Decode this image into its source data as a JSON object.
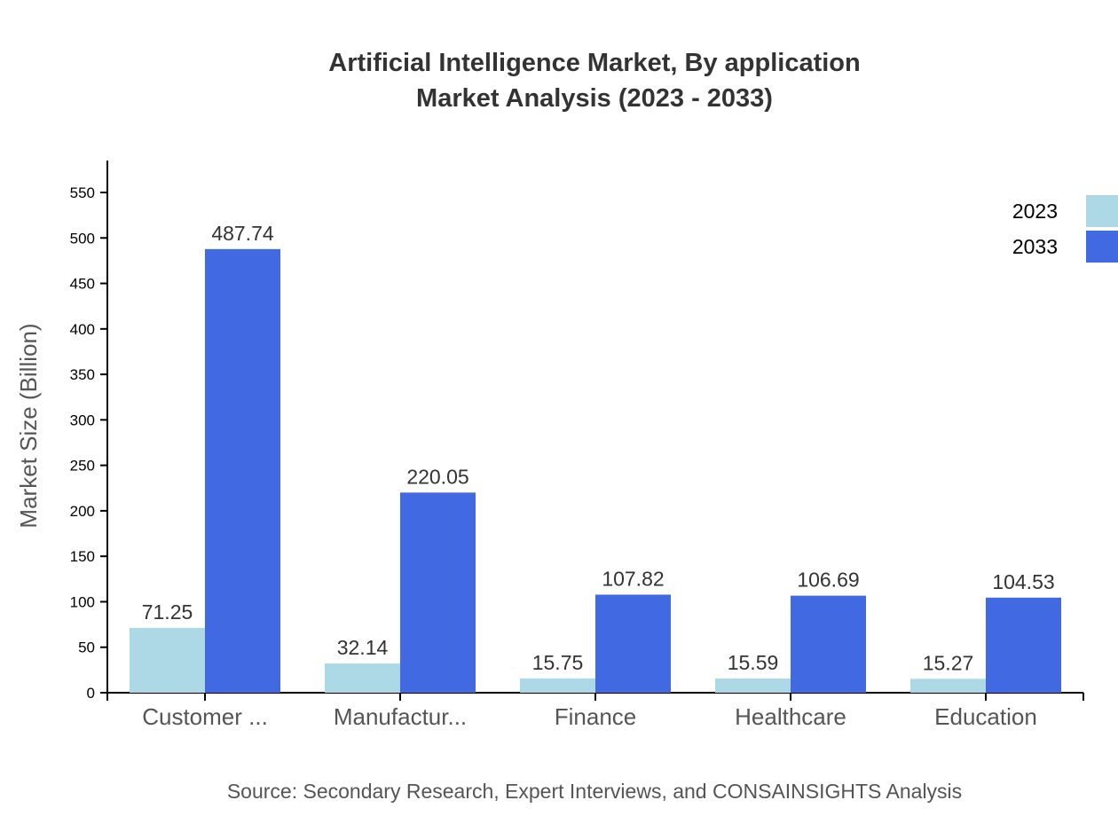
{
  "chart_data": {
    "type": "bar",
    "title": "Artificial Intelligence Market, By application",
    "subtitle": "Market Analysis (2023 - 2033)",
    "ylabel": "Market Size (Billion)",
    "xlabel": "",
    "ylim": [
      0,
      585
    ],
    "yticks": [
      0,
      50,
      100,
      150,
      200,
      250,
      300,
      350,
      400,
      450,
      500,
      550
    ],
    "categories": [
      "Customer ...",
      "Manufactur...",
      "Finance",
      "Healthcare",
      "Education"
    ],
    "series": [
      {
        "name": "2023",
        "color": "#add8e6",
        "values": [
          71.25,
          32.14,
          15.75,
          15.59,
          15.27
        ]
      },
      {
        "name": "2033",
        "color": "#4169e1",
        "values": [
          487.74,
          220.05,
          107.82,
          106.69,
          104.53
        ]
      }
    ],
    "legend": "top-right",
    "grid": false,
    "source": "Source: Secondary Research, Expert Interviews, and CONSAINSIGHTS Analysis"
  }
}
